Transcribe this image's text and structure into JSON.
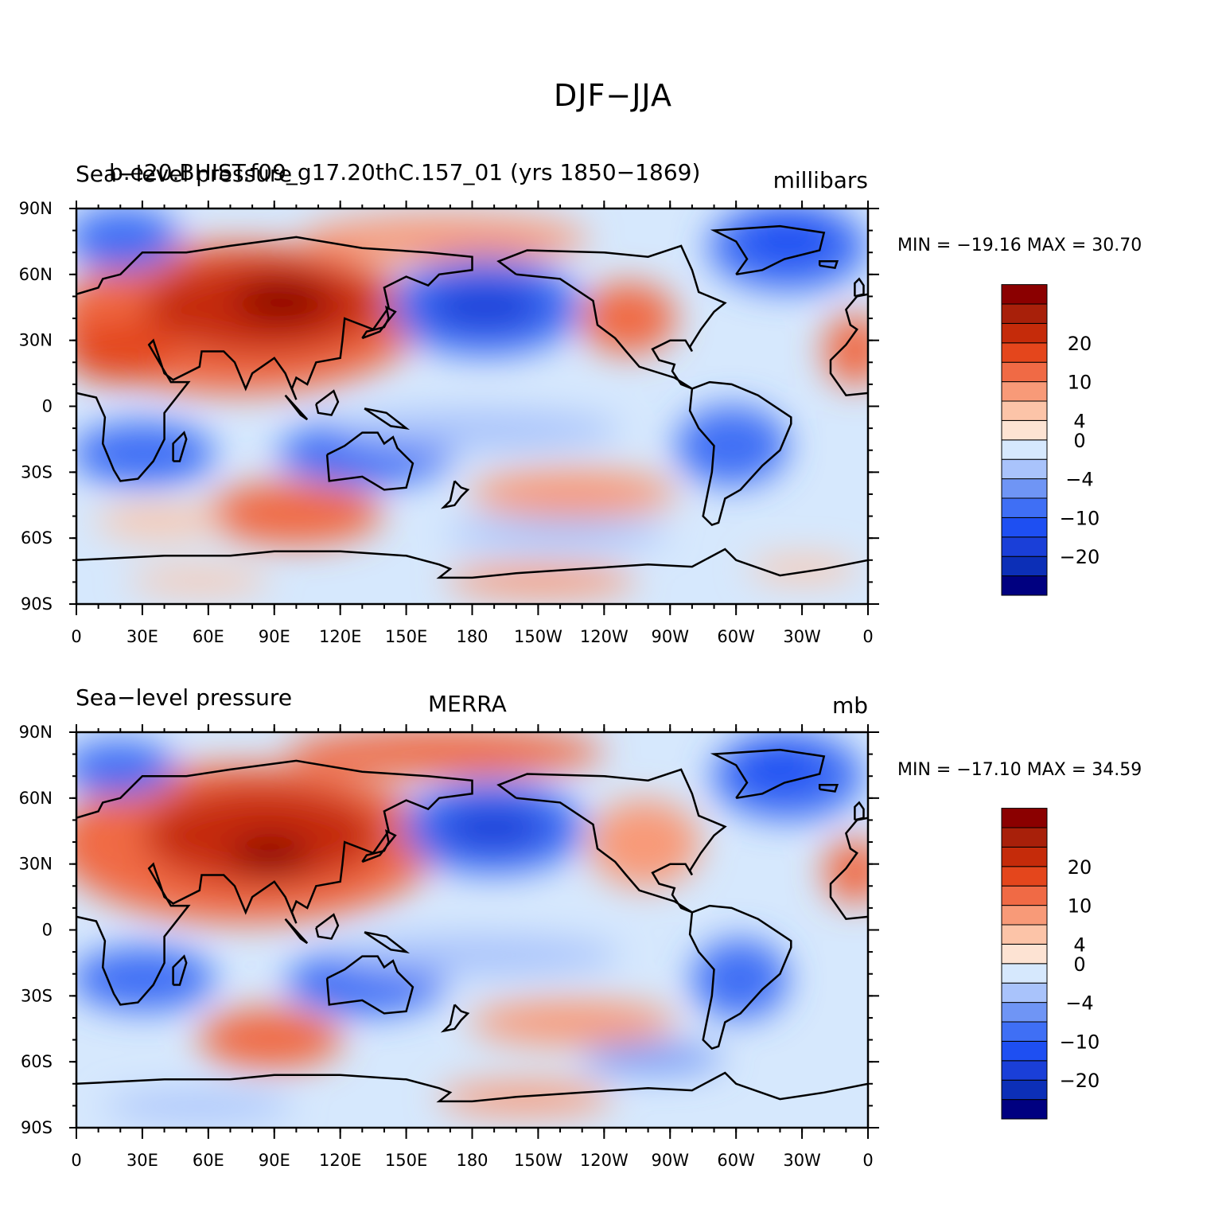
{
  "figure": {
    "title": "DJF−JJA"
  },
  "colorbar": {
    "colors": [
      "#000080",
      "#0c2fb7",
      "#1a3fd8",
      "#1e4ff2",
      "#3f6ff5",
      "#6f95f5",
      "#a9c3fb",
      "#d6e8fd",
      "#fde3d3",
      "#fcc4a8",
      "#f89a78",
      "#f06a45",
      "#e4461c",
      "#c52b0a",
      "#a8200a",
      "#8b0000"
    ],
    "labels": [
      {
        "text": "20",
        "index": 13
      },
      {
        "text": "10",
        "index": 11
      },
      {
        "text": "4",
        "index": 9
      },
      {
        "text": "0",
        "index": 8
      },
      {
        "text": "−4",
        "index": 6
      },
      {
        "text": "−10",
        "index": 4
      },
      {
        "text": "−20",
        "index": 2
      }
    ]
  },
  "axes": {
    "lat_labels": [
      "90N",
      "60N",
      "30N",
      "0",
      "30S",
      "60S",
      "90S"
    ],
    "lon_labels": [
      "0",
      "30E",
      "60E",
      "90E",
      "120E",
      "150E",
      "180",
      "150W",
      "120W",
      "90W",
      "60W",
      "30W",
      "0"
    ]
  },
  "panels": [
    {
      "left_title": "Sea−level pressure",
      "center_title": "b.e20.BHIST.f09_g17.20thC.157_01 (yrs 1850−1869)",
      "units": "millibars",
      "min_max": "MIN = −19.16 MAX =   30.70"
    },
    {
      "left_title": "Sea−level pressure",
      "center_title": "MERRA",
      "units": "mb",
      "min_max": "MIN = −17.10 MAX =   34.59"
    }
  ]
}
